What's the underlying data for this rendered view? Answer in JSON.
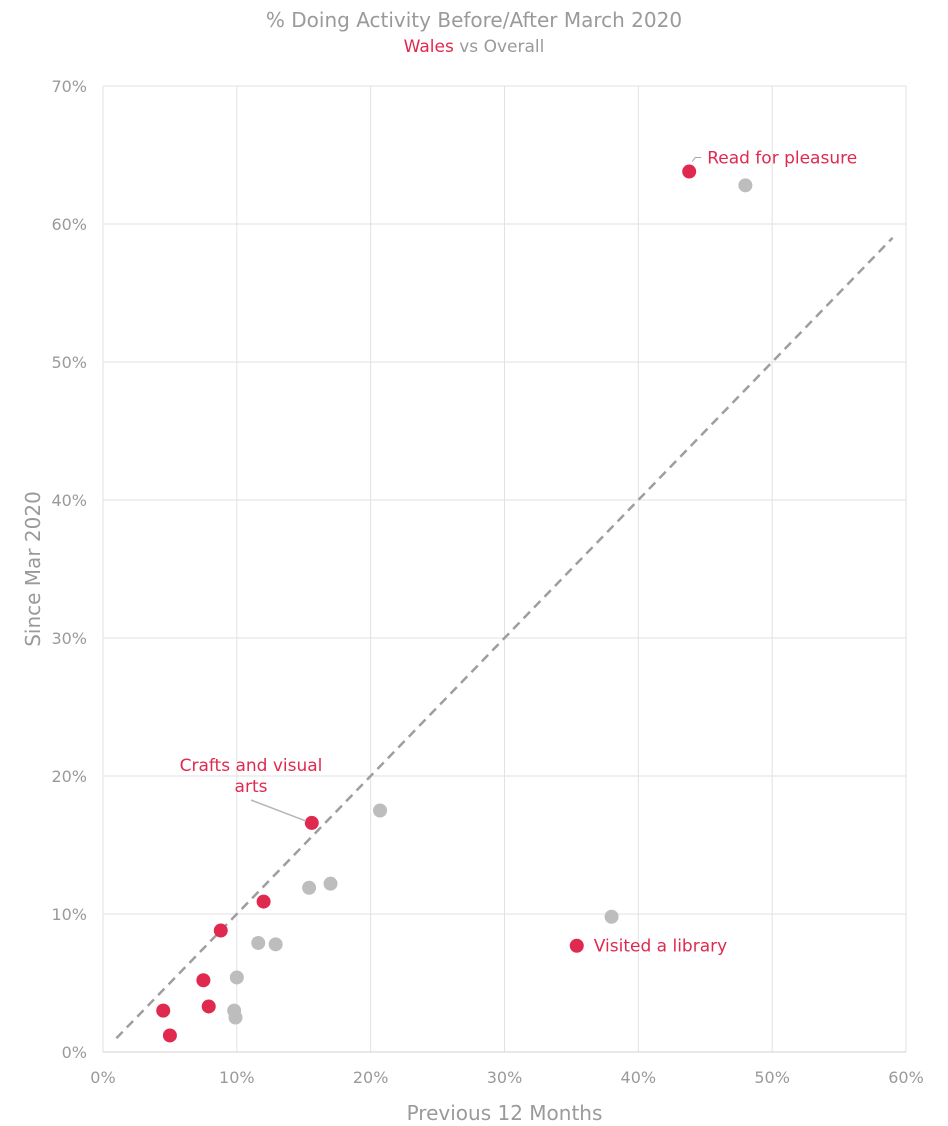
{
  "chart_data": {
    "type": "scatter",
    "title": "% Doing Activity Before/After March 2020",
    "subtitle": {
      "highlight": "Wales",
      "rest": " vs Overall"
    },
    "xlabel": "Previous 12 Months",
    "ylabel": "Since Mar 2020",
    "xlim": [
      0,
      0.6
    ],
    "ylim": [
      0,
      0.7
    ],
    "x_ticks": [
      {
        "value": 0.0,
        "label": "0%"
      },
      {
        "value": 0.1,
        "label": "10%"
      },
      {
        "value": 0.2,
        "label": "20%"
      },
      {
        "value": 0.3,
        "label": "30%"
      },
      {
        "value": 0.4,
        "label": "40%"
      },
      {
        "value": 0.5,
        "label": "50%"
      },
      {
        "value": 0.6,
        "label": "60%"
      }
    ],
    "y_ticks": [
      {
        "value": 0.0,
        "label": "0%"
      },
      {
        "value": 0.1,
        "label": "10%"
      },
      {
        "value": 0.2,
        "label": "20%"
      },
      {
        "value": 0.3,
        "label": "30%"
      },
      {
        "value": 0.4,
        "label": "40%"
      },
      {
        "value": 0.5,
        "label": "50%"
      },
      {
        "value": 0.6,
        "label": "60%"
      },
      {
        "value": 0.7,
        "label": "70%"
      }
    ],
    "grid": true,
    "reference_line": {
      "style": "dashed",
      "from": [
        0.01,
        0.01
      ],
      "to": [
        0.59,
        0.59
      ]
    },
    "colors": {
      "wales": "#e0294f",
      "overall": "#bdbdbd",
      "text": "#9a9a9a",
      "grid": "#e2e2e2",
      "reference": "#9e9e9e"
    },
    "series": [
      {
        "name": "Overall",
        "points": [
          {
            "x": 0.48,
            "y": 0.628
          },
          {
            "x": 0.207,
            "y": 0.175
          },
          {
            "x": 0.17,
            "y": 0.122
          },
          {
            "x": 0.154,
            "y": 0.119
          },
          {
            "x": 0.116,
            "y": 0.079
          },
          {
            "x": 0.129,
            "y": 0.078
          },
          {
            "x": 0.1,
            "y": 0.054
          },
          {
            "x": 0.098,
            "y": 0.03
          },
          {
            "x": 0.099,
            "y": 0.025
          },
          {
            "x": 0.38,
            "y": 0.098
          }
        ]
      },
      {
        "name": "Wales",
        "points": [
          {
            "x": 0.438,
            "y": 0.638,
            "label": "Read for pleasure"
          },
          {
            "x": 0.156,
            "y": 0.166,
            "label": "Crafts and visual arts"
          },
          {
            "x": 0.12,
            "y": 0.109
          },
          {
            "x": 0.088,
            "y": 0.088
          },
          {
            "x": 0.075,
            "y": 0.052
          },
          {
            "x": 0.079,
            "y": 0.033
          },
          {
            "x": 0.045,
            "y": 0.03
          },
          {
            "x": 0.05,
            "y": 0.012
          },
          {
            "x": 0.354,
            "y": 0.077,
            "label": "Visited a library"
          }
        ]
      }
    ]
  }
}
